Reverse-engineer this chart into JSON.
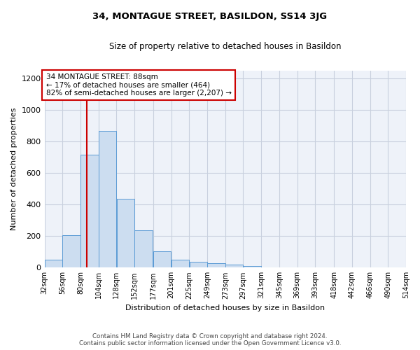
{
  "title": "34, MONTAGUE STREET, BASILDON, SS14 3JG",
  "subtitle": "Size of property relative to detached houses in Basildon",
  "xlabel": "Distribution of detached houses by size in Basildon",
  "ylabel": "Number of detached properties",
  "annotation_title": "34 MONTAGUE STREET: 88sqm",
  "annotation_line1": "← 17% of detached houses are smaller (464)",
  "annotation_line2": "82% of semi-detached houses are larger (2,207) →",
  "footer_line1": "Contains HM Land Registry data © Crown copyright and database right 2024.",
  "footer_line2": "Contains public sector information licensed under the Open Government Licence v3.0.",
  "bin_edges": [
    32,
    56,
    80,
    104,
    128,
    152,
    177,
    201,
    225,
    249,
    273,
    297,
    321,
    345,
    369,
    393,
    418,
    442,
    466,
    490,
    514
  ],
  "bar_heights": [
    50,
    207,
    714,
    868,
    435,
    235,
    105,
    48,
    38,
    28,
    18,
    10,
    0,
    0,
    0,
    0,
    0,
    0,
    0,
    0
  ],
  "bar_color": "#ccddf0",
  "bar_edge_color": "#5b9bd5",
  "vline_color": "#cc0000",
  "vline_x": 88,
  "annotation_box_color": "#cc0000",
  "grid_color": "#c8d0de",
  "background_color": "#eef2f9",
  "ylim": [
    0,
    1250
  ],
  "yticks": [
    0,
    200,
    400,
    600,
    800,
    1000,
    1200
  ],
  "tick_labels": [
    "32sqm",
    "56sqm",
    "80sqm",
    "104sqm",
    "128sqm",
    "152sqm",
    "177sqm",
    "201sqm",
    "225sqm",
    "249sqm",
    "273sqm",
    "297sqm",
    "321sqm",
    "345sqm",
    "369sqm",
    "393sqm",
    "418sqm",
    "442sqm",
    "466sqm",
    "490sqm",
    "514sqm"
  ]
}
